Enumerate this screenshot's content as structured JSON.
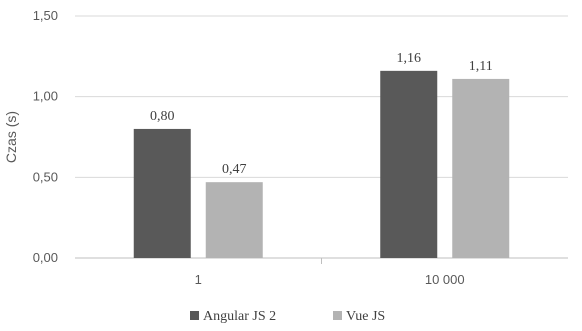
{
  "chart_data": {
    "type": "bar",
    "categories": [
      "1",
      "10 000"
    ],
    "series": [
      {
        "name": "Angular JS 2",
        "values": [
          0.8,
          1.16
        ],
        "labels": [
          "0,80",
          "1,16"
        ],
        "color": "#595959"
      },
      {
        "name": "Vue JS",
        "values": [
          0.47,
          1.11
        ],
        "labels": [
          "0,47",
          "1,11"
        ],
        "color": "#b3b3b3"
      }
    ],
    "ylabel": "Czas (s)",
    "ylim": [
      0,
      1.5
    ],
    "yticks": [
      0,
      0.5,
      1.0,
      1.5
    ],
    "ytick_labels": [
      "0,00",
      "0,50",
      "1,00",
      "1,50"
    ],
    "grid": true,
    "legend_position": "bottom"
  }
}
